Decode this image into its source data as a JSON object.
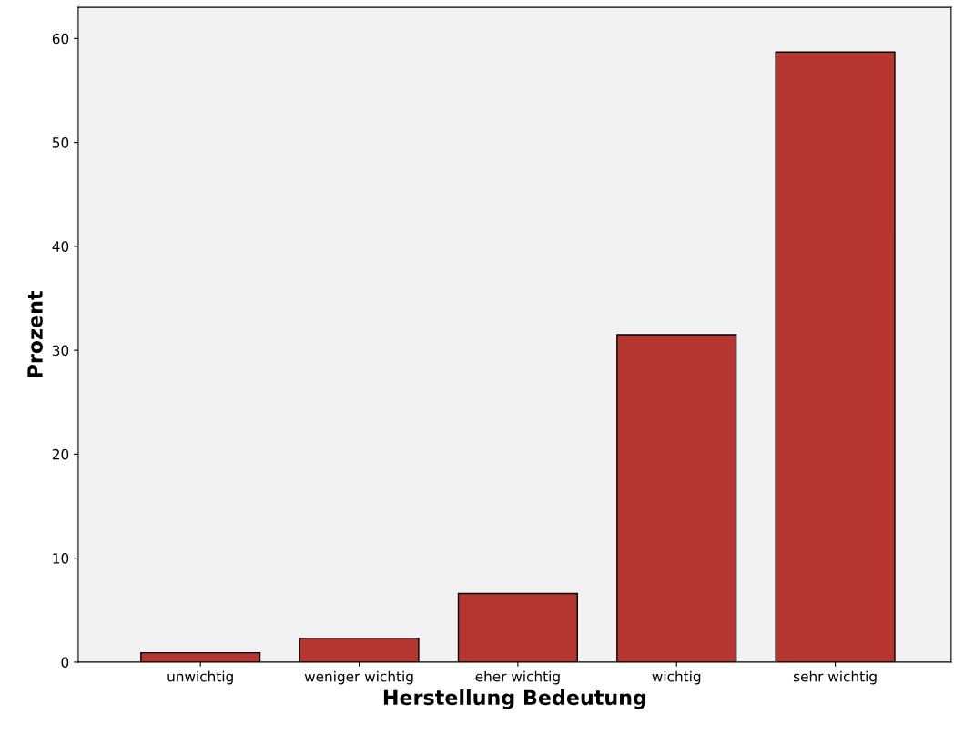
{
  "chart_data": {
    "type": "bar",
    "xlabel": "Herstellung Bedeutung",
    "ylabel": "Prozent",
    "categories": [
      "unwichtig",
      "weniger wichtig",
      "eher wichtig",
      "wichtig",
      "sehr wichtig"
    ],
    "values": [
      0.9,
      2.3,
      6.6,
      31.5,
      58.7
    ],
    "color": "#b5352f",
    "ylim": [
      0,
      63
    ],
    "yticks": [
      0,
      10,
      20,
      30,
      40,
      50,
      60
    ],
    "grid": false,
    "legend": false
  }
}
